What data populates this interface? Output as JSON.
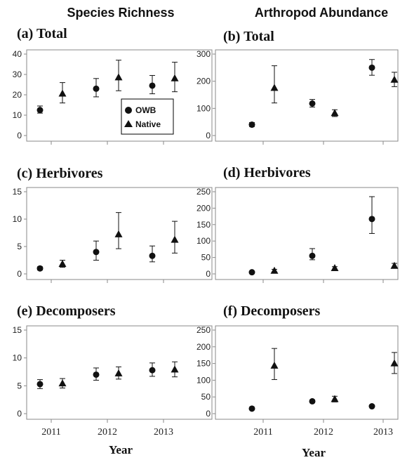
{
  "column_titles": [
    "Species Richness",
    "Arthropod Abundance"
  ],
  "x_axis_label": "Year",
  "legend": {
    "position": "inside panel (a), lower right",
    "entries": [
      {
        "name": "OWB",
        "marker": "circle"
      },
      {
        "name": "Native",
        "marker": "triangle"
      }
    ]
  },
  "colors": {
    "marker": "#111111",
    "frame": "#8a8a8a",
    "text": "#111111"
  },
  "chart_data": [
    {
      "type": "scatter",
      "panel": "(a)",
      "subtitle": "Total",
      "column": "Species Richness",
      "categories": [
        "2011",
        "2012",
        "2013"
      ],
      "ylim": [
        0,
        40
      ],
      "yticks": [
        0,
        10,
        20,
        30,
        40
      ],
      "series": [
        {
          "name": "OWB",
          "values": [
            12.5,
            23,
            24.5
          ],
          "lower": [
            11,
            19,
            20.5
          ],
          "upper": [
            14.5,
            28,
            29.5
          ]
        },
        {
          "name": "Native",
          "values": [
            20.5,
            28.5,
            28
          ],
          "lower": [
            16,
            22,
            21.5
          ],
          "upper": [
            26,
            37,
            36
          ]
        }
      ]
    },
    {
      "type": "scatter",
      "panel": "(b)",
      "subtitle": "Total",
      "column": "Arthropod Abundance",
      "categories": [
        "2011",
        "2012",
        "2013"
      ],
      "ylim": [
        0,
        300
      ],
      "yticks": [
        0,
        100,
        200,
        300
      ],
      "series": [
        {
          "name": "OWB",
          "values": [
            40,
            118,
            250
          ],
          "lower": [
            33,
            105,
            222
          ],
          "upper": [
            48,
            133,
            280
          ]
        },
        {
          "name": "Native",
          "values": [
            175,
            82,
            205
          ],
          "lower": [
            120,
            70,
            180
          ],
          "upper": [
            257,
            95,
            233
          ]
        }
      ]
    },
    {
      "type": "scatter",
      "panel": "(c)",
      "subtitle": "Herbivores",
      "column": "Species Richness",
      "categories": [
        "2011",
        "2012",
        "2013"
      ],
      "ylim": [
        0,
        15
      ],
      "yticks": [
        0,
        5,
        10,
        15
      ],
      "series": [
        {
          "name": "OWB",
          "values": [
            1.0,
            4.0,
            3.3
          ],
          "lower": [
            0.7,
            2.5,
            2.2
          ],
          "upper": [
            1.3,
            6.0,
            5.1
          ]
        },
        {
          "name": "Native",
          "values": [
            1.8,
            7.2,
            6.2
          ],
          "lower": [
            1.2,
            4.6,
            3.8
          ],
          "upper": [
            2.5,
            11.2,
            9.6
          ]
        }
      ]
    },
    {
      "type": "scatter",
      "panel": "(d)",
      "subtitle": "Herbivores",
      "column": "Arthropod Abundance",
      "categories": [
        "2011",
        "2012",
        "2013"
      ],
      "ylim": [
        0,
        250
      ],
      "yticks": [
        0,
        50,
        100,
        150,
        200,
        250
      ],
      "series": [
        {
          "name": "OWB",
          "values": [
            5,
            55,
            167
          ],
          "lower": [
            4,
            43,
            123
          ],
          "upper": [
            7,
            77,
            235
          ]
        },
        {
          "name": "Native",
          "values": [
            9,
            17,
            24
          ],
          "lower": [
            5,
            13,
            18
          ],
          "upper": [
            14,
            22,
            32
          ]
        }
      ]
    },
    {
      "type": "scatter",
      "panel": "(e)",
      "subtitle": "Decomposers",
      "column": "Species Richness",
      "categories": [
        "2011",
        "2012",
        "2013"
      ],
      "ylim": [
        0,
        15
      ],
      "yticks": [
        0,
        5,
        10,
        15
      ],
      "series": [
        {
          "name": "OWB",
          "values": [
            5.3,
            7.0,
            7.8
          ],
          "lower": [
            4.5,
            6.0,
            6.7
          ],
          "upper": [
            6.1,
            8.2,
            9.1
          ]
        },
        {
          "name": "Native",
          "values": [
            5.4,
            7.2,
            7.9
          ],
          "lower": [
            4.6,
            6.2,
            6.6
          ],
          "upper": [
            6.3,
            8.4,
            9.3
          ]
        }
      ]
    },
    {
      "type": "scatter",
      "panel": "(f)",
      "subtitle": "Decomposers",
      "column": "Arthropod Abundance",
      "categories": [
        "2011",
        "2012",
        "2013"
      ],
      "ylim": [
        0,
        250
      ],
      "yticks": [
        0,
        50,
        100,
        150,
        200,
        250
      ],
      "series": [
        {
          "name": "OWB",
          "values": [
            15,
            37,
            22
          ],
          "lower": [
            12,
            33,
            19
          ],
          "upper": [
            18,
            41,
            26
          ]
        },
        {
          "name": "Native",
          "values": [
            143,
            43,
            150
          ],
          "lower": [
            102,
            35,
            120
          ],
          "upper": [
            195,
            52,
            183
          ]
        }
      ]
    }
  ]
}
